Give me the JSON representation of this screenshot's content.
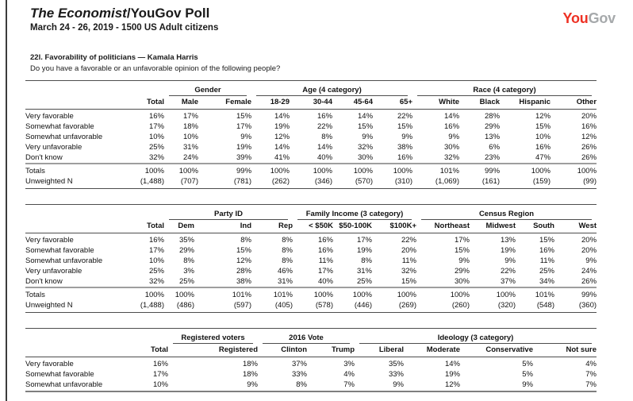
{
  "header": {
    "brand_italic": "The Economist",
    "brand_rest": "/YouGov Poll",
    "dates": "March 24 - 26, 2019 - 1500 US Adult citizens",
    "logo_you": "You",
    "logo_gov": "Gov",
    "logo_you_color": "#ee3124",
    "logo_gov_color": "#a6a9ab"
  },
  "question": {
    "title": "22l. Favorability of politicians — Kamala Harris",
    "text": "Do you have a favorable or an unfavorable opinion of the following people?"
  },
  "tables": [
    {
      "groups": [
        {
          "label": "",
          "cols": [
            "Total"
          ]
        },
        {
          "label": "Gender",
          "cols": [
            "Male",
            "Female"
          ]
        },
        {
          "label": "Age (4 category)",
          "cols": [
            "18-29",
            "30-44",
            "45-64",
            "65+"
          ]
        },
        {
          "label": "Race (4 category)",
          "cols": [
            "White",
            "Black",
            "Hispanic",
            "Other"
          ]
        }
      ],
      "rows": [
        {
          "label": "Very favorable",
          "values": [
            "16%",
            "17%",
            "15%",
            "14%",
            "16%",
            "14%",
            "22%",
            "14%",
            "28%",
            "12%",
            "20%"
          ]
        },
        {
          "label": "Somewhat favorable",
          "values": [
            "17%",
            "18%",
            "17%",
            "19%",
            "22%",
            "15%",
            "15%",
            "16%",
            "29%",
            "15%",
            "16%"
          ]
        },
        {
          "label": "Somewhat unfavorable",
          "values": [
            "10%",
            "10%",
            "9%",
            "12%",
            "8%",
            "9%",
            "9%",
            "9%",
            "13%",
            "10%",
            "12%"
          ]
        },
        {
          "label": "Very unfavorable",
          "values": [
            "25%",
            "31%",
            "19%",
            "14%",
            "14%",
            "32%",
            "38%",
            "30%",
            "6%",
            "16%",
            "26%"
          ]
        },
        {
          "label": "Don't know",
          "values": [
            "32%",
            "24%",
            "39%",
            "41%",
            "40%",
            "30%",
            "16%",
            "32%",
            "23%",
            "47%",
            "26%"
          ]
        }
      ],
      "totals": {
        "label": "Totals",
        "values": [
          "100%",
          "100%",
          "99%",
          "100%",
          "100%",
          "100%",
          "100%",
          "101%",
          "99%",
          "100%",
          "100%"
        ]
      },
      "unweighted": {
        "label": "Unweighted N",
        "values": [
          "(1,488)",
          "(707)",
          "(781)",
          "(262)",
          "(346)",
          "(570)",
          "(310)",
          "(1,069)",
          "(161)",
          "(159)",
          "(99)"
        ]
      }
    },
    {
      "groups": [
        {
          "label": "",
          "cols": [
            "Total"
          ]
        },
        {
          "label": "Party ID",
          "cols": [
            "Dem",
            "Ind",
            "Rep"
          ]
        },
        {
          "label": "Family Income (3 category)",
          "cols": [
            "< $50K",
            "$50-100K",
            "$100K+"
          ]
        },
        {
          "label": "Census Region",
          "cols": [
            "Northeast",
            "Midwest",
            "South",
            "West"
          ]
        }
      ],
      "rows": [
        {
          "label": "Very favorable",
          "values": [
            "16%",
            "35%",
            "8%",
            "8%",
            "16%",
            "17%",
            "22%",
            "17%",
            "13%",
            "15%",
            "20%"
          ]
        },
        {
          "label": "Somewhat favorable",
          "values": [
            "17%",
            "29%",
            "15%",
            "8%",
            "16%",
            "19%",
            "20%",
            "15%",
            "19%",
            "16%",
            "20%"
          ]
        },
        {
          "label": "Somewhat unfavorable",
          "values": [
            "10%",
            "8%",
            "12%",
            "8%",
            "11%",
            "8%",
            "11%",
            "9%",
            "9%",
            "11%",
            "9%"
          ]
        },
        {
          "label": "Very unfavorable",
          "values": [
            "25%",
            "3%",
            "28%",
            "46%",
            "17%",
            "31%",
            "32%",
            "29%",
            "22%",
            "25%",
            "24%"
          ]
        },
        {
          "label": "Don't know",
          "values": [
            "32%",
            "25%",
            "38%",
            "31%",
            "40%",
            "25%",
            "15%",
            "30%",
            "37%",
            "34%",
            "26%"
          ]
        }
      ],
      "totals": {
        "label": "Totals",
        "values": [
          "100%",
          "100%",
          "101%",
          "101%",
          "100%",
          "100%",
          "100%",
          "100%",
          "100%",
          "101%",
          "99%"
        ]
      },
      "unweighted": {
        "label": "Unweighted N",
        "values": [
          "(1,488)",
          "(486)",
          "(597)",
          "(405)",
          "(578)",
          "(446)",
          "(269)",
          "(260)",
          "(320)",
          "(548)",
          "(360)"
        ]
      }
    },
    {
      "groups": [
        {
          "label": "",
          "cols": [
            "Total"
          ]
        },
        {
          "label": "Registered voters",
          "cols": [
            "Registered"
          ]
        },
        {
          "label": "2016 Vote",
          "cols": [
            "Clinton",
            "Trump"
          ]
        },
        {
          "label": "Ideology (3 category)",
          "cols": [
            "Liberal",
            "Moderate",
            "Conservative",
            "Not sure"
          ]
        }
      ],
      "rows": [
        {
          "label": "Very favorable",
          "values": [
            "16%",
            "18%",
            "37%",
            "3%",
            "35%",
            "14%",
            "5%",
            "4%"
          ]
        },
        {
          "label": "Somewhat favorable",
          "values": [
            "17%",
            "18%",
            "33%",
            "4%",
            "33%",
            "19%",
            "5%",
            "7%"
          ]
        },
        {
          "label": "Somewhat unfavorable",
          "values": [
            "10%",
            "9%",
            "8%",
            "7%",
            "9%",
            "12%",
            "9%",
            "7%"
          ]
        }
      ]
    }
  ]
}
